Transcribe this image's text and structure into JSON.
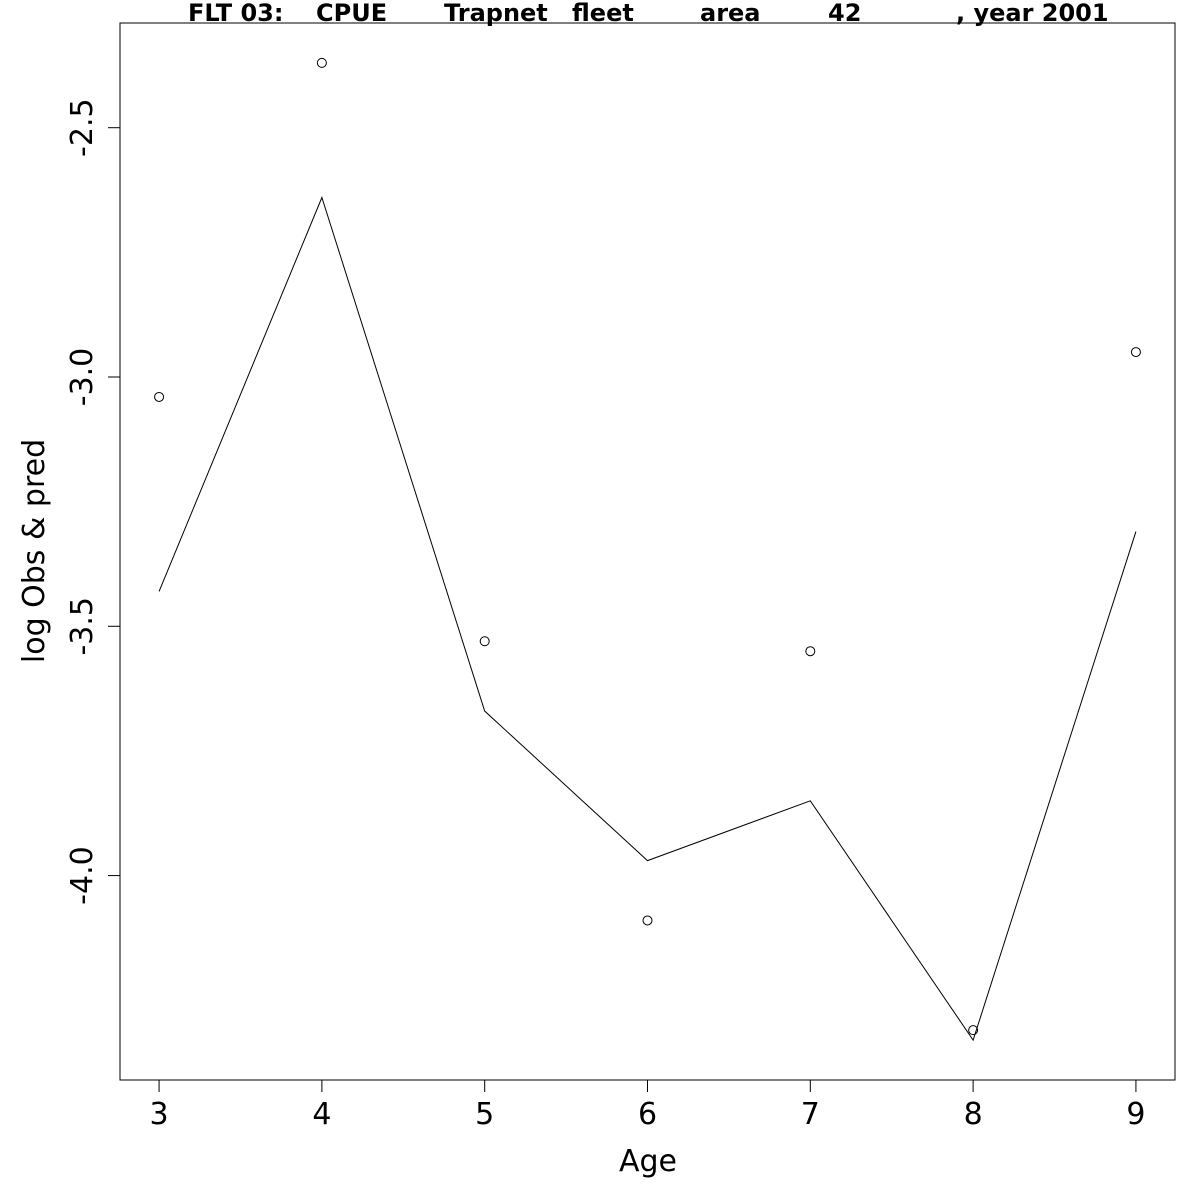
{
  "chart_data": {
    "type": "line",
    "title": {
      "parts": [
        "FLT 03:",
        "CPUE",
        "Trapnet",
        "fleet",
        "area",
        "42",
        ", year 2001"
      ]
    },
    "xlabel": "Age",
    "ylabel": "log Obs & pred",
    "x_ticks": [
      3,
      4,
      5,
      6,
      7,
      8,
      9
    ],
    "x_tick_labels": [
      "3",
      "4",
      "5",
      "6",
      "7",
      "8",
      "9"
    ],
    "y_ticks": [
      -4.0,
      -3.5,
      -3.0,
      -2.5
    ],
    "y_tick_labels": [
      "-4.0",
      "-3.5",
      "-3.0",
      "-2.5"
    ],
    "xlim": [
      2.76,
      9.24
    ],
    "ylim": [
      -4.41,
      -2.29
    ],
    "grid": false,
    "series": [
      {
        "kind": "points",
        "x": [
          3,
          4,
          5,
          6,
          7,
          8,
          9
        ],
        "values": [
          -3.04,
          -2.37,
          -3.53,
          -4.09,
          -3.55,
          -4.31,
          -2.95
        ]
      },
      {
        "kind": "line",
        "x": [
          3,
          4,
          5,
          6,
          7,
          8,
          9
        ],
        "values": [
          -3.43,
          -2.64,
          -3.67,
          -3.97,
          -3.85,
          -4.33,
          -3.31
        ]
      }
    ]
  }
}
